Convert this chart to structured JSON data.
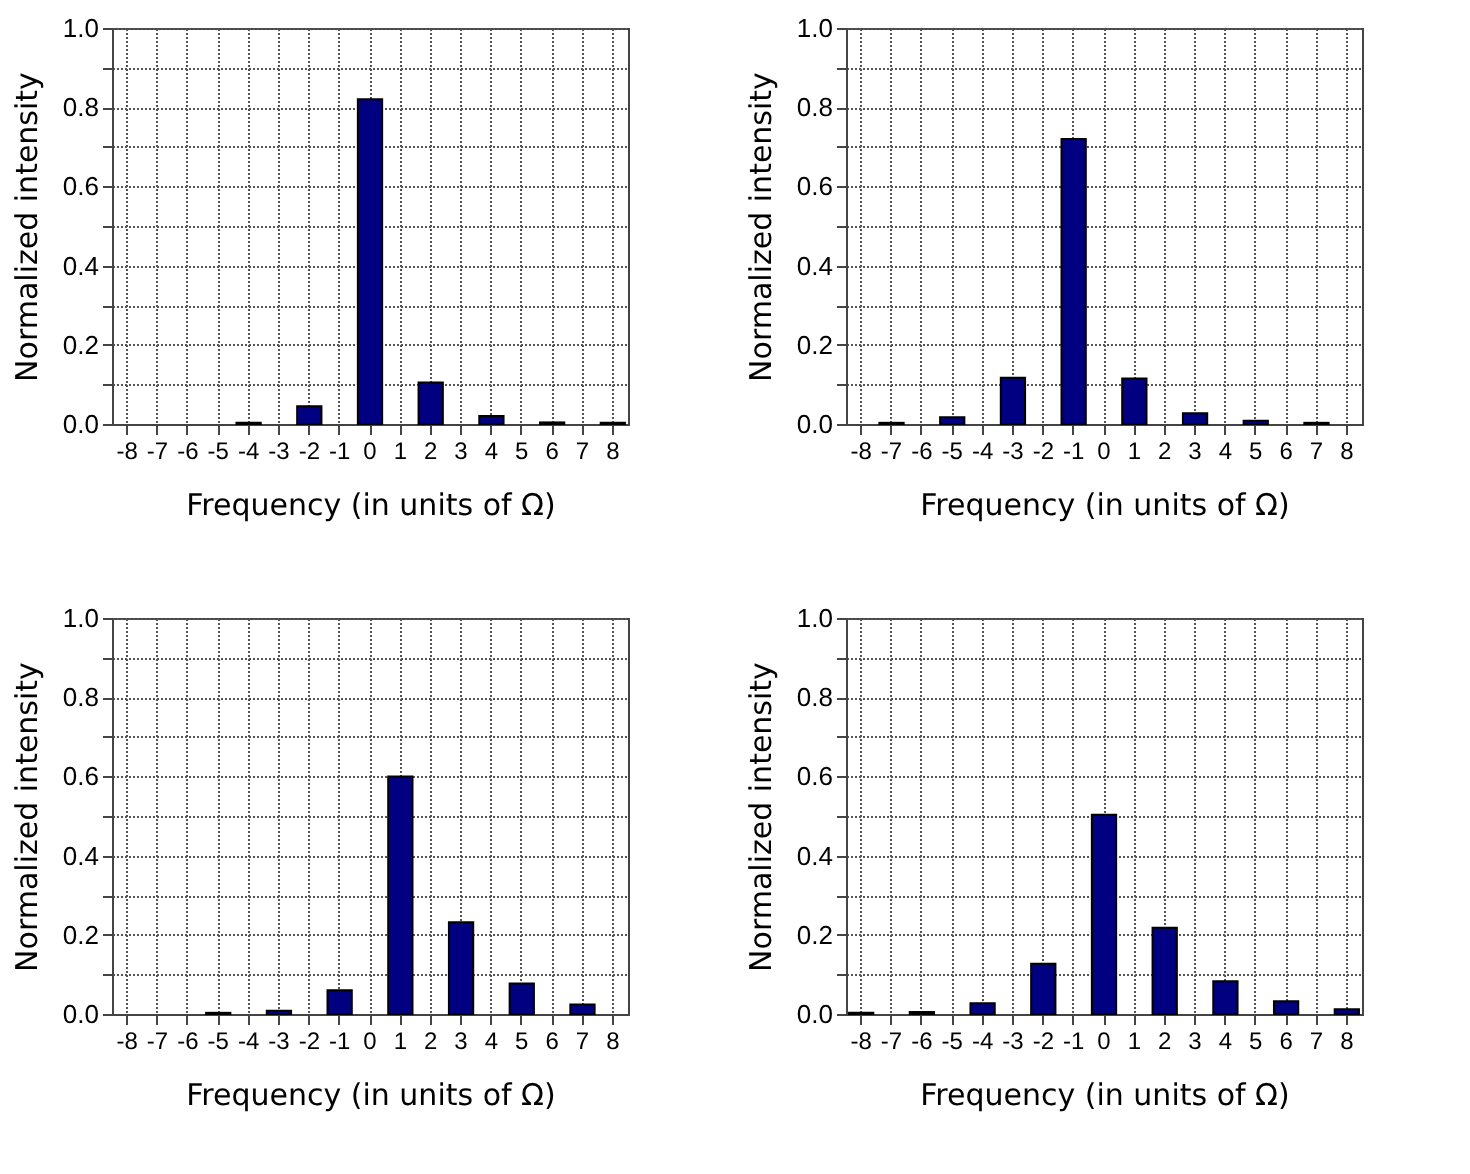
{
  "chart_data": [
    {
      "type": "bar",
      "xlabel": "Frequency (in units of Ω)",
      "ylabel": "Normalized intensity",
      "categories": [
        "-8",
        "-7",
        "-6",
        "-5",
        "-4",
        "-3",
        "-2",
        "-1",
        "0",
        "1",
        "2",
        "3",
        "4",
        "5",
        "6",
        "7",
        "8"
      ],
      "color": "#000080",
      "values": [
        null,
        null,
        null,
        null,
        0.003,
        null,
        0.045,
        null,
        0.82,
        null,
        0.105,
        null,
        0.02,
        null,
        0.004,
        null,
        0.003
      ],
      "ylim": [
        0,
        1
      ],
      "yticks": [
        {
          "value": 0,
          "label": "0.0"
        },
        {
          "value": 0.1,
          "label": null
        },
        {
          "value": 0.2,
          "label": "0.2"
        },
        {
          "value": 0.3,
          "label": null
        },
        {
          "value": 0.4,
          "label": "0.4"
        },
        {
          "value": 0.5,
          "label": null
        },
        {
          "value": 0.6,
          "label": "0.6"
        },
        {
          "value": 0.7,
          "label": null
        },
        {
          "value": 0.8,
          "label": "0.8"
        },
        {
          "value": 0.9,
          "label": null
        },
        {
          "value": 1,
          "label": "1.0"
        }
      ],
      "grid": true,
      "line_style": "dotted"
    },
    {
      "type": "bar",
      "xlabel": "Frequency (in units of Ω)",
      "ylabel": "Normalized intensity",
      "categories": [
        "-8",
        "-7",
        "-6",
        "-5",
        "-4",
        "-3",
        "-2",
        "-1",
        "0",
        "1",
        "2",
        "3",
        "4",
        "5",
        "6",
        "7",
        "8"
      ],
      "color": "#000080",
      "values": [
        null,
        0.003,
        null,
        0.017,
        null,
        0.117,
        null,
        0.72,
        null,
        0.115,
        null,
        0.027,
        null,
        0.008,
        null,
        0.003,
        null
      ],
      "ylim": [
        0,
        1
      ],
      "yticks": [
        {
          "value": 0,
          "label": "0.0"
        },
        {
          "value": 0.1,
          "label": null
        },
        {
          "value": 0.2,
          "label": "0.2"
        },
        {
          "value": 0.3,
          "label": null
        },
        {
          "value": 0.4,
          "label": "0.4"
        },
        {
          "value": 0.5,
          "label": null
        },
        {
          "value": 0.6,
          "label": "0.6"
        },
        {
          "value": 0.7,
          "label": null
        },
        {
          "value": 0.8,
          "label": "0.8"
        },
        {
          "value": 0.9,
          "label": null
        },
        {
          "value": 1,
          "label": "1.0"
        }
      ],
      "grid": true,
      "line_style": "dotted"
    },
    {
      "type": "bar",
      "xlabel": "Frequency (in units of Ω)",
      "ylabel": "Normalized intensity",
      "categories": [
        "-8",
        "-7",
        "-6",
        "-5",
        "-4",
        "-3",
        "-2",
        "-1",
        "0",
        "1",
        "2",
        "3",
        "4",
        "5",
        "6",
        "7",
        "8"
      ],
      "color": "#000080",
      "values": [
        null,
        null,
        null,
        0.003,
        null,
        0.008,
        null,
        0.06,
        null,
        0.6,
        null,
        0.232,
        null,
        0.077,
        null,
        0.024,
        null
      ],
      "ylim": [
        0,
        1
      ],
      "yticks": [
        {
          "value": 0,
          "label": "0.0"
        },
        {
          "value": 0.1,
          "label": null
        },
        {
          "value": 0.2,
          "label": "0.2"
        },
        {
          "value": 0.3,
          "label": null
        },
        {
          "value": 0.4,
          "label": "0.4"
        },
        {
          "value": 0.5,
          "label": null
        },
        {
          "value": 0.6,
          "label": "0.6"
        },
        {
          "value": 0.7,
          "label": null
        },
        {
          "value": 0.8,
          "label": "0.8"
        },
        {
          "value": 0.9,
          "label": null
        },
        {
          "value": 1,
          "label": "1.0"
        }
      ],
      "grid": true,
      "line_style": "dotted"
    },
    {
      "type": "bar",
      "xlabel": "Frequency (in units of Ω)",
      "ylabel": "Normalized intensity",
      "categories": [
        "-8",
        "-7",
        "-6",
        "-5",
        "-4",
        "-3",
        "-2",
        "-1",
        "0",
        "1",
        "2",
        "3",
        "4",
        "5",
        "6",
        "7",
        "8"
      ],
      "color": "#000080",
      "values": [
        0.003,
        null,
        0.005,
        null,
        0.027,
        null,
        0.127,
        null,
        0.503,
        null,
        0.218,
        null,
        0.083,
        null,
        0.032,
        null,
        0.012
      ],
      "ylim": [
        0,
        1
      ],
      "yticks": [
        {
          "value": 0,
          "label": "0.0"
        },
        {
          "value": 0.1,
          "label": null
        },
        {
          "value": 0.2,
          "label": "0.2"
        },
        {
          "value": 0.3,
          "label": null
        },
        {
          "value": 0.4,
          "label": "0.4"
        },
        {
          "value": 0.5,
          "label": null
        },
        {
          "value": 0.6,
          "label": "0.6"
        },
        {
          "value": 0.7,
          "label": null
        },
        {
          "value": 0.8,
          "label": "0.8"
        },
        {
          "value": 0.9,
          "label": null
        },
        {
          "value": 1,
          "label": "1.0"
        }
      ],
      "grid": true,
      "line_style": "dotted"
    }
  ]
}
